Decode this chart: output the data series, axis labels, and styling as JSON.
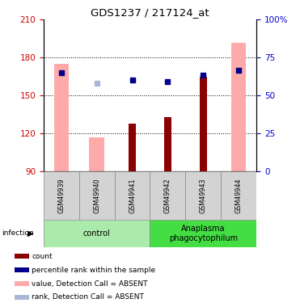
{
  "title": "GDS1237 / 217124_at",
  "samples": [
    "GSM49939",
    "GSM49940",
    "GSM49941",
    "GSM49942",
    "GSM49943",
    "GSM49944"
  ],
  "ylim": [
    90,
    210
  ],
  "y2lim": [
    0,
    100
  ],
  "yticks": [
    90,
    120,
    150,
    180,
    210
  ],
  "ytick_labels": [
    "90",
    "120",
    "150",
    "180",
    "210"
  ],
  "y2ticks": [
    0,
    25,
    50,
    75,
    100
  ],
  "y2tick_labels": [
    "0",
    "25",
    "50",
    "75",
    "100%"
  ],
  "red_bars": [
    null,
    null,
    128,
    133,
    165,
    null
  ],
  "pink_bars": [
    175,
    117,
    null,
    null,
    null,
    192
  ],
  "blue_squares": [
    168,
    null,
    162,
    161,
    166,
    170
  ],
  "light_blue_squares": [
    null,
    160,
    null,
    null,
    null,
    170
  ],
  "groups": [
    {
      "label": "control",
      "start": 0,
      "end": 3,
      "color": "#aaeaaa"
    },
    {
      "label": "Anaplasma\nphagocytophilum",
      "start": 3,
      "end": 6,
      "color": "#44dd44"
    }
  ],
  "infection_label": "infection",
  "pink_color": "#ffaaaa",
  "red_color": "#8b0000",
  "blue_color": "#00008b",
  "light_blue_color": "#aab8d8",
  "ylabel_left_color": "#cc0000",
  "ylabel_right_color": "#0000cc",
  "legend_labels": [
    "count",
    "percentile rank within the sample",
    "value, Detection Call = ABSENT",
    "rank, Detection Call = ABSENT"
  ]
}
